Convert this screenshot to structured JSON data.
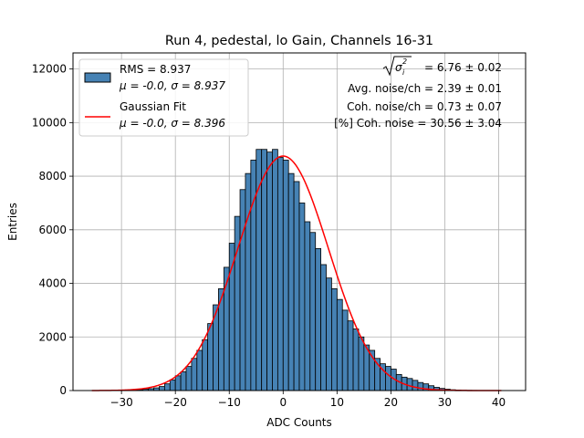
{
  "chart_data": {
    "type": "histogram",
    "title": "Run 4, pedestal, lo Gain, Channels 16-31",
    "xlabel": "ADC Counts",
    "ylabel": "Entries",
    "xlim": [
      -39,
      45
    ],
    "ylim": [
      0,
      12600
    ],
    "xticks": [
      -30,
      -20,
      -10,
      0,
      10,
      20,
      30,
      40
    ],
    "yticks": [
      0,
      2000,
      4000,
      6000,
      8000,
      10000,
      12000
    ],
    "grid": true,
    "bar_color": "#4682b4",
    "fit_color": "#ff0000",
    "bin_width": 1,
    "bins": {
      "left_edges": [
        -35,
        -34,
        -33,
        -32,
        -31,
        -30,
        -29,
        -28,
        -27,
        -26,
        -25,
        -24,
        -23,
        -22,
        -21,
        -20,
        -19,
        -18,
        -17,
        -16,
        -15,
        -14,
        -13,
        -12,
        -11,
        -10,
        -9,
        -8,
        -7,
        -6,
        -5,
        -4,
        -3,
        -2,
        -1,
        0,
        1,
        2,
        3,
        4,
        5,
        6,
        7,
        8,
        9,
        10,
        11,
        12,
        13,
        14,
        15,
        16,
        17,
        18,
        19,
        20,
        21,
        22,
        23,
        24,
        25,
        26,
        27,
        28,
        29,
        30,
        31,
        32,
        33,
        34,
        35,
        36,
        37,
        38,
        39,
        40
      ],
      "counts": [
        2,
        3,
        4,
        6,
        8,
        12,
        18,
        25,
        35,
        50,
        70,
        100,
        150,
        250,
        400,
        550,
        700,
        900,
        1200,
        1500,
        1900,
        2500,
        3200,
        3800,
        4600,
        5500,
        6500,
        7500,
        8100,
        8600,
        9000,
        9000,
        8900,
        9000,
        8700,
        8600,
        8100,
        7800,
        7000,
        6300,
        5900,
        5300,
        4700,
        4200,
        3800,
        3400,
        3000,
        2600,
        2300,
        2000,
        1700,
        1500,
        1200,
        1000,
        900,
        800,
        600,
        500,
        450,
        380,
        300,
        250,
        180,
        120,
        80,
        50,
        30,
        20,
        12,
        8,
        5,
        3,
        2,
        2,
        1,
        1
      ]
    },
    "fit_curve": {
      "name": "Gaussian Fit",
      "mu": -0.0,
      "sigma": 8.396,
      "amplitude": 8750,
      "x_range": [
        -35.5,
        40.5
      ]
    },
    "legend": {
      "placement": "upper-left",
      "entries": [
        {
          "line1": "RMS = 8.937",
          "line2": "μ = -0.0, σ = 8.937"
        },
        {
          "line1": "Gaussian Fit",
          "line2": "μ = -0.0, σ = 8.396"
        }
      ]
    },
    "annotations": {
      "sigma_i_value": " = 6.76 ± 0.02",
      "avg_noise": "Avg. noise/ch = 2.39 ± 0.01",
      "coh_noise": "Coh. noise/ch = 0.73 ± 0.07",
      "coh_noise_pct": "[%] Coh. noise = 30.56 ± 3.04"
    }
  }
}
